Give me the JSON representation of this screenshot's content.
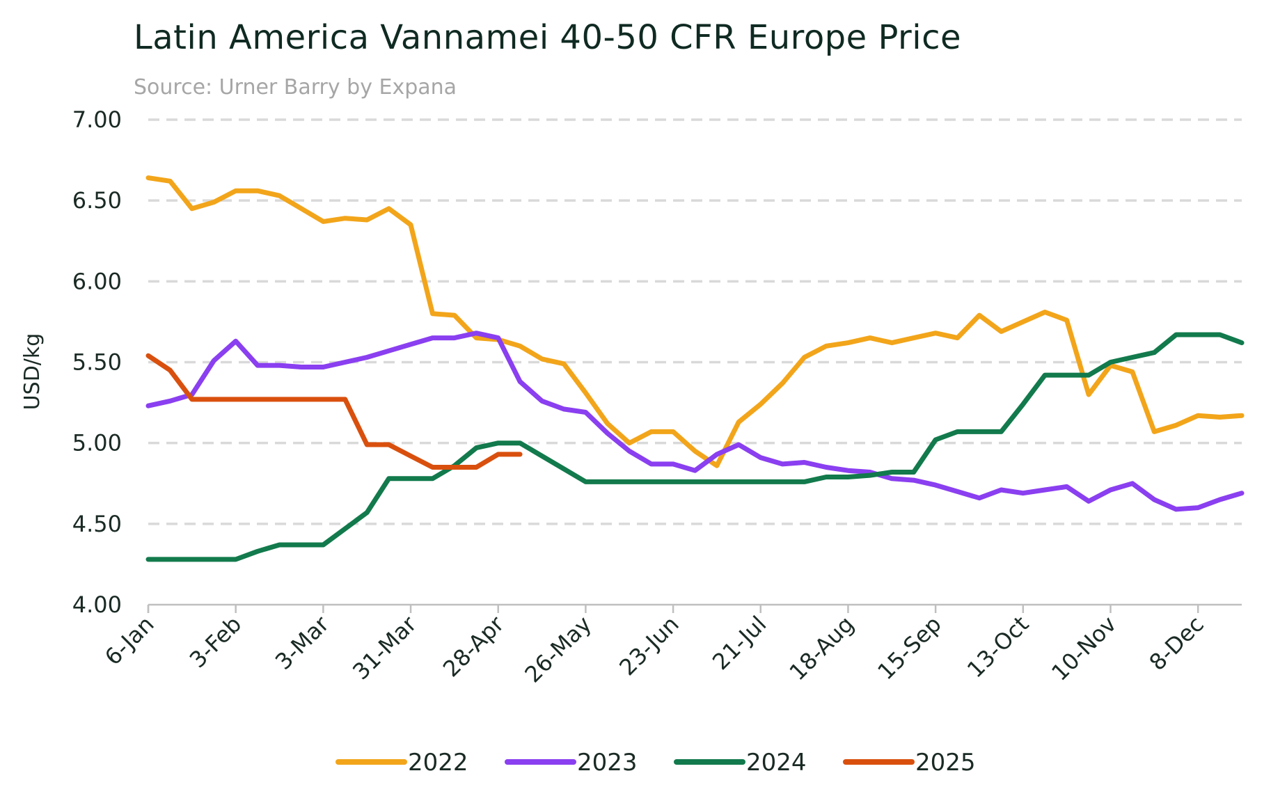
{
  "chart_data": {
    "type": "line",
    "title": "Latin America Vannamei 40-50 CFR Europe Price",
    "subtitle": "Source: Urner Barry by Expana",
    "xlabel": "",
    "ylabel": "USD/kg",
    "ylim": [
      4.0,
      7.0
    ],
    "yticks": [
      "4.00",
      "4.50",
      "5.00",
      "5.50",
      "6.00",
      "6.50",
      "7.00"
    ],
    "xticks": [
      "6-Jan",
      "3-Feb",
      "3-Mar",
      "31-Mar",
      "28-Apr",
      "26-May",
      "23-Jun",
      "21-Jul",
      "18-Aug",
      "15-Sep",
      "13-Oct",
      "10-Nov",
      "8-Dec"
    ],
    "x_weeks": 51,
    "grid": true,
    "legend_position": "bottom",
    "series": [
      {
        "name": "2022",
        "color": "#f2a51a",
        "values": [
          6.64,
          6.62,
          6.45,
          6.49,
          6.56,
          6.56,
          6.53,
          6.45,
          6.37,
          6.39,
          6.38,
          6.45,
          6.35,
          5.8,
          5.79,
          5.65,
          5.64,
          5.6,
          5.52,
          5.49,
          5.31,
          5.12,
          5.0,
          5.07,
          5.07,
          4.95,
          4.86,
          5.13,
          5.24,
          5.37,
          5.53,
          5.6,
          5.62,
          5.65,
          5.62,
          5.65,
          5.68,
          5.65,
          5.79,
          5.69,
          5.75,
          5.81,
          5.76,
          5.3,
          5.48,
          5.44,
          5.07,
          5.11,
          5.17,
          5.16,
          5.17
        ]
      },
      {
        "name": "2023",
        "color": "#8a3ff0",
        "values": [
          5.23,
          5.26,
          5.3,
          5.51,
          5.63,
          5.48,
          5.48,
          5.47,
          5.47,
          5.5,
          5.53,
          5.57,
          5.61,
          5.65,
          5.65,
          5.68,
          5.65,
          5.38,
          5.26,
          5.21,
          5.19,
          5.06,
          4.95,
          4.87,
          4.87,
          4.83,
          4.93,
          4.99,
          4.91,
          4.87,
          4.88,
          4.85,
          4.83,
          4.82,
          4.78,
          4.77,
          4.74,
          4.7,
          4.66,
          4.71,
          4.69,
          4.71,
          4.73,
          4.64,
          4.71,
          4.75,
          4.65,
          4.59,
          4.6,
          4.65,
          4.69
        ]
      },
      {
        "name": "2024",
        "color": "#127a4c",
        "values": [
          4.28,
          4.28,
          4.28,
          4.28,
          4.28,
          4.33,
          4.37,
          4.37,
          4.37,
          4.47,
          4.57,
          4.78,
          4.78,
          4.78,
          4.86,
          4.97,
          5.0,
          5.0,
          4.92,
          4.84,
          4.76,
          4.76,
          4.76,
          4.76,
          4.76,
          4.76,
          4.76,
          4.76,
          4.76,
          4.76,
          4.76,
          4.79,
          4.79,
          4.8,
          4.82,
          4.82,
          5.02,
          5.07,
          5.07,
          5.07,
          5.24,
          5.42,
          5.42,
          5.42,
          5.5,
          5.53,
          5.56,
          5.67,
          5.67,
          5.67,
          5.62
        ]
      },
      {
        "name": "2025",
        "color": "#d9500e",
        "values": [
          5.54,
          5.45,
          5.27,
          5.27,
          5.27,
          5.27,
          5.27,
          5.27,
          5.27,
          5.27,
          4.99,
          4.99,
          4.92,
          4.85,
          4.85,
          4.85,
          4.93,
          4.93
        ]
      }
    ]
  }
}
